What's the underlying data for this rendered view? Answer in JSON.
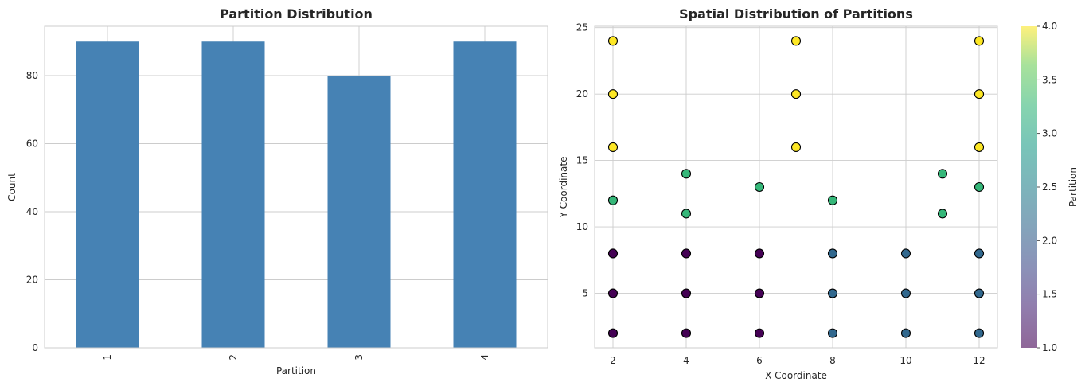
{
  "chart_data": [
    {
      "type": "bar",
      "title": "Partition Distribution",
      "xlabel": "Partition",
      "ylabel": "Count",
      "categories": [
        "1",
        "2",
        "3",
        "4"
      ],
      "values": [
        90,
        90,
        80,
        90
      ],
      "ylim": [
        0,
        94.5
      ],
      "yticks": [
        "0",
        "20",
        "40",
        "60",
        "80"
      ],
      "grid": true,
      "bar_color": "#4682b4"
    },
    {
      "type": "scatter",
      "title": "Spatial Distribution of Partitions",
      "xlabel": "X Coordinate",
      "ylabel": "Y Coordinate",
      "xlim": [
        1.5,
        12.5
      ],
      "ylim": [
        0.9,
        25.1
      ],
      "xticks": [
        "2",
        "4",
        "6",
        "8",
        "10",
        "12"
      ],
      "yticks": [
        "5",
        "10",
        "15",
        "20",
        "25"
      ],
      "grid": true,
      "colormap": "viridis",
      "colorbar": {
        "label": "Partition",
        "range": [
          1.0,
          4.0
        ],
        "ticks": [
          "1.0",
          "1.5",
          "2.0",
          "2.5",
          "3.0",
          "3.5",
          "4.0"
        ]
      },
      "series": [
        {
          "partition": 1,
          "color": "#440154",
          "points": [
            [
              2,
              2
            ],
            [
              2,
              5
            ],
            [
              2,
              8
            ],
            [
              4,
              2
            ],
            [
              4,
              5
            ],
            [
              4,
              8
            ],
            [
              6,
              2
            ],
            [
              6,
              5
            ],
            [
              6,
              8
            ]
          ]
        },
        {
          "partition": 2,
          "color": "#31688e",
          "points": [
            [
              8,
              2
            ],
            [
              8,
              5
            ],
            [
              8,
              8
            ],
            [
              10,
              2
            ],
            [
              10,
              5
            ],
            [
              10,
              8
            ],
            [
              12,
              2
            ],
            [
              12,
              5
            ],
            [
              12,
              8
            ]
          ]
        },
        {
          "partition": 3,
          "color": "#35b779",
          "points": [
            [
              2,
              12
            ],
            [
              4,
              14
            ],
            [
              4,
              11
            ],
            [
              6,
              13
            ],
            [
              8,
              12
            ],
            [
              11,
              14
            ],
            [
              11,
              11
            ],
            [
              12,
              13
            ]
          ]
        },
        {
          "partition": 4,
          "color": "#fde725",
          "points": [
            [
              2,
              16
            ],
            [
              2,
              20
            ],
            [
              2,
              24
            ],
            [
              7,
              16
            ],
            [
              7,
              20
            ],
            [
              7,
              24
            ],
            [
              12,
              16
            ],
            [
              12,
              20
            ],
            [
              12,
              24
            ]
          ]
        }
      ]
    }
  ]
}
